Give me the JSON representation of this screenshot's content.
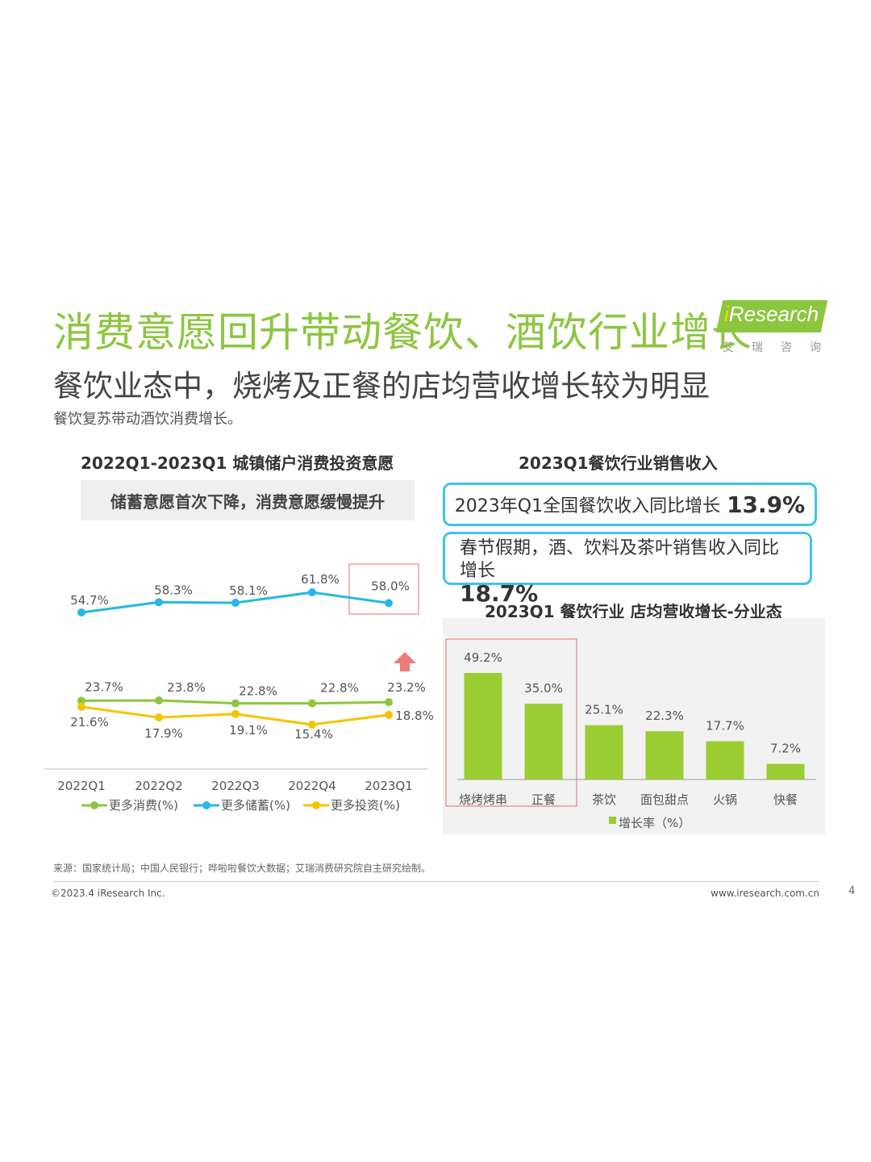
{
  "page": {
    "title": "消费意愿回升带动餐饮、酒饮行业增长",
    "subtitle": "餐饮业态中，烧烤及正餐的店均营收增长较为明显",
    "summary": "餐饮复苏带动酒饮消费增长。",
    "logo_text": "Research",
    "logo_i": "i",
    "logo_cn": "艾瑞咨询",
    "source": "来源：国家统计局；中国人民银行；哗啦啦餐饮大数据；艾瑞消费研究院自主研究绘制。",
    "copyright": "©2023.4 iResearch Inc.",
    "url": "www.iresearch.com.cn",
    "page_number": "4"
  },
  "left_panel": {
    "chart_title": "2022Q1-2023Q1 城镇储户消费投资意愿",
    "banner": "储蓄意愿首次下降，消费意愿缓慢提升"
  },
  "right_panel": {
    "chart_title": "2023Q1餐饮行业销售收入",
    "callout1_text": "2023年Q1全国餐饮收入同比增长",
    "callout1_value": "13.9%",
    "callout2_text": "春节假期，酒、饮料及茶叶销售收入同比增长",
    "callout2_value": "18.7%",
    "bar_chart_title": "2023Q1 餐饮行业 店均营收增长-分业态"
  },
  "colors": {
    "green": "#8cc63f",
    "cyan": "#29b6e6",
    "yellow": "#f5c400",
    "bar": "#9acd32",
    "highlight_box": "#e07070",
    "up_arrow": "#ef7b7b"
  },
  "chart_data": [
    {
      "type": "line",
      "categories": [
        "2022Q1",
        "2022Q2",
        "2022Q3",
        "2022Q4",
        "2023Q1"
      ],
      "series": [
        {
          "name": "更多消费(%)",
          "values": [
            23.7,
            23.8,
            22.8,
            22.8,
            23.2
          ],
          "labels": [
            "23.7%",
            "23.8%",
            "22.8%",
            "22.8%",
            "23.2%"
          ]
        },
        {
          "name": "更多储蓄(%)",
          "values": [
            54.7,
            58.3,
            58.1,
            61.8,
            58.0
          ],
          "labels": [
            "54.7%",
            "58.3%",
            "58.1%",
            "61.8%",
            "58.0%"
          ]
        },
        {
          "name": "更多投资(%)",
          "values": [
            21.6,
            17.9,
            19.1,
            15.4,
            18.8
          ],
          "labels": [
            "21.6%",
            "17.9%",
            "19.1%",
            "15.4%",
            "18.8%"
          ]
        }
      ],
      "legend": "bottom"
    },
    {
      "type": "bar",
      "categories": [
        "烧烤烤串",
        "正餐",
        "茶饮",
        "面包甜点",
        "火锅",
        "快餐"
      ],
      "series": [
        {
          "name": "增长率（%）",
          "values": [
            49.2,
            35.0,
            25.1,
            22.3,
            17.7,
            7.2
          ],
          "labels": [
            "49.2%",
            "35.0%",
            "25.1%",
            "22.3%",
            "17.7%",
            "7.2%"
          ]
        }
      ],
      "legend": "bottom"
    }
  ]
}
